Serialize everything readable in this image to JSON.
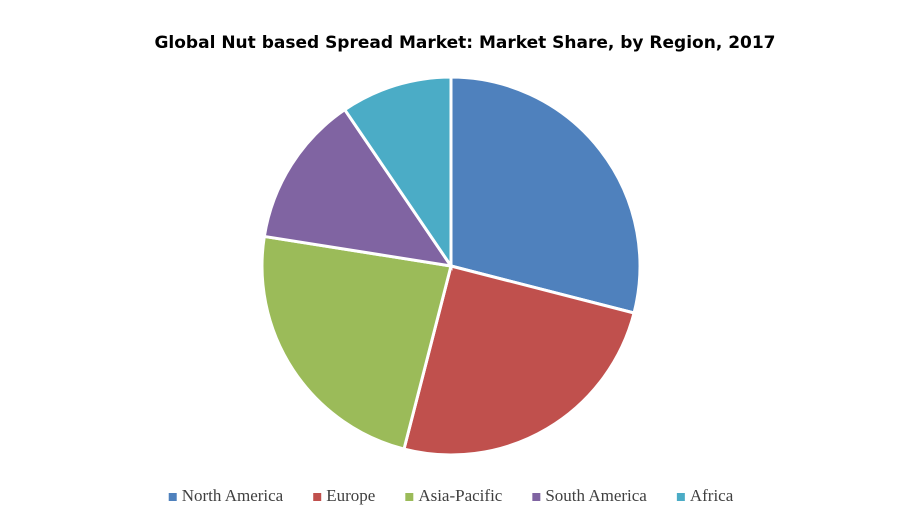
{
  "chart_data": {
    "type": "pie",
    "title": "Global Nut based Spread Market: Market Share, by Region, 2017",
    "categories": [
      "North America",
      "Europe",
      "Asia-Pacific",
      "South America",
      "Africa"
    ],
    "values": [
      29,
      25,
      23.5,
      13,
      9.5
    ],
    "colors": [
      "#4f81bd",
      "#c0504d",
      "#9bbb59",
      "#8064a2",
      "#4bacc6"
    ],
    "legend": "bottom"
  }
}
